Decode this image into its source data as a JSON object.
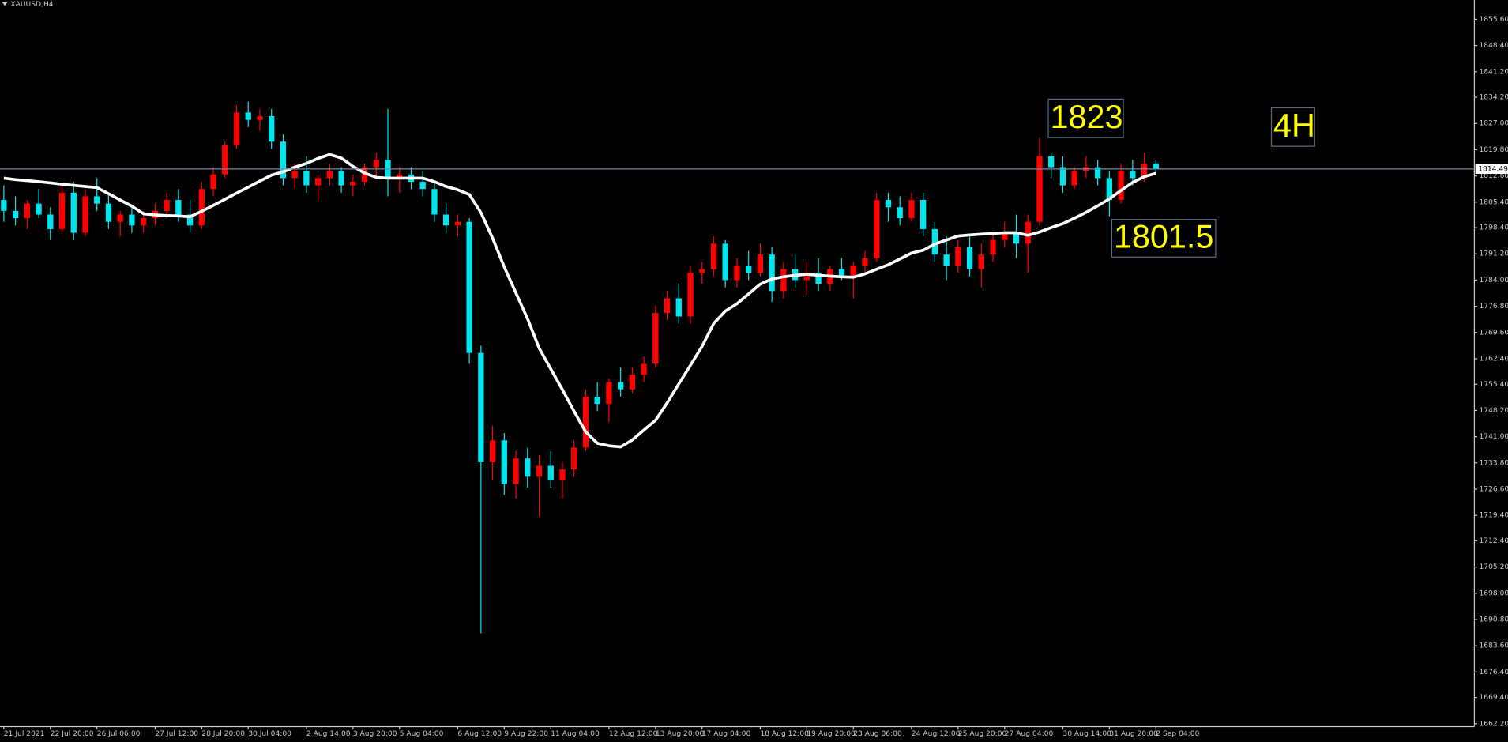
{
  "chart_data": {
    "type": "candlestick",
    "title": "XAUUSD,H4",
    "up_color": "#ff0000",
    "down_color": "#00e5ee",
    "ma_color": "#ffffff",
    "ylim": [
      1661.4,
      1860.9
    ],
    "yticks": [
      {
        "value": 1662.2,
        "label": "1662.20"
      },
      {
        "value": 1669.4,
        "label": "1669.40"
      },
      {
        "value": 1676.4,
        "label": "1676.40"
      },
      {
        "value": 1683.6,
        "label": "1683.60"
      },
      {
        "value": 1690.8,
        "label": "1690.80"
      },
      {
        "value": 1698,
        "label": "1698.00"
      },
      {
        "value": 1705.2,
        "label": "1705.20"
      },
      {
        "value": 1712.4,
        "label": "1712.40"
      },
      {
        "value": 1719.4,
        "label": "1719.40"
      },
      {
        "value": 1726.6,
        "label": "1726.60"
      },
      {
        "value": 1733.8,
        "label": "1733.80"
      },
      {
        "value": 1741,
        "label": "1741.00"
      },
      {
        "value": 1748.2,
        "label": "1748.20"
      },
      {
        "value": 1755.4,
        "label": "1755.40"
      },
      {
        "value": 1762.4,
        "label": "1762.40"
      },
      {
        "value": 1769.6,
        "label": "1769.60"
      },
      {
        "value": 1776.8,
        "label": "1776.80"
      },
      {
        "value": 1784,
        "label": "1784.00"
      },
      {
        "value": 1791.2,
        "label": "1791.20"
      },
      {
        "value": 1798.4,
        "label": "1798.40"
      },
      {
        "value": 1805.4,
        "label": "1805.40"
      },
      {
        "value": 1812.6,
        "label": "1812.60"
      },
      {
        "value": 1819.8,
        "label": "1819.80"
      },
      {
        "value": 1827,
        "label": "1827.00"
      },
      {
        "value": 1834.2,
        "label": "1834.20"
      },
      {
        "value": 1841.2,
        "label": "1841.20"
      },
      {
        "value": 1848.4,
        "label": "1848.40"
      },
      {
        "value": 1855.6,
        "label": "1855.60"
      }
    ],
    "categories": [
      "21 Jul 2021",
      null,
      null,
      null,
      "22 Jul 20:00",
      null,
      null,
      null,
      "26 Jul 06:00",
      null,
      null,
      null,
      null,
      "27 Jul 12:00",
      null,
      null,
      null,
      "28 Jul 20:00",
      null,
      null,
      null,
      "30 Jul 04:00",
      null,
      null,
      null,
      null,
      "2 Aug 14:00",
      null,
      null,
      null,
      "3 Aug 20:00",
      null,
      null,
      null,
      "5 Aug 04:00",
      null,
      null,
      null,
      null,
      "6 Aug 12:00",
      null,
      null,
      null,
      "9 Aug 22:00",
      null,
      null,
      null,
      "11 Aug 04:00",
      null,
      null,
      null,
      null,
      "12 Aug 12:00",
      null,
      null,
      null,
      "13 Aug 20:00",
      null,
      null,
      null,
      "17 Aug 04:00",
      null,
      null,
      null,
      null,
      "18 Aug 12:00",
      null,
      null,
      null,
      "19 Aug 20:00",
      null,
      null,
      null,
      "23 Aug 06:00",
      null,
      null,
      null,
      null,
      "24 Aug 12:00",
      null,
      null,
      null,
      "25 Aug 20:00",
      null,
      null,
      null,
      "27 Aug 04:00",
      null,
      null,
      null,
      null,
      "30 Aug 14:00",
      null,
      null,
      null,
      "31 Aug 20:00",
      null,
      null,
      null,
      "2 Sep 04:00"
    ],
    "open": [
      1806,
      1803,
      1801,
      1805,
      1802,
      1798,
      1808,
      1797,
      1807,
      1805,
      1800,
      1802,
      1799,
      1801,
      1803,
      1806,
      1802,
      1799,
      1809,
      1813,
      1821,
      1830,
      1828,
      1829,
      1822,
      1812,
      1814,
      1810,
      1812,
      1814,
      1810,
      1811,
      1815,
      1817,
      1812,
      1813,
      1811,
      1809,
      1802,
      1799,
      1800,
      1764,
      1734,
      1740,
      1728,
      1735,
      1730,
      1733,
      1729,
      1732,
      1738,
      1752,
      1750,
      1756,
      1754,
      1758,
      1761,
      1775,
      1779,
      1774,
      1786,
      1787,
      1794,
      1784,
      1788,
      1786,
      1791,
      1781,
      1787,
      1784,
      1786,
      1783,
      1787,
      1785,
      1788,
      1790,
      1806,
      1804,
      1801,
      1806,
      1798,
      1791,
      1788,
      1793,
      1787,
      1791,
      1795,
      1797,
      1794,
      1800,
      1818,
      1815,
      1810,
      1814,
      1815,
      1812,
      1806,
      1814,
      1812,
      1816
    ],
    "high": [
      1810,
      1807,
      1806,
      1809,
      1804,
      1810,
      1811,
      1809,
      1812,
      1808,
      1803,
      1804,
      1803,
      1805,
      1808,
      1809,
      1806,
      1811,
      1815,
      1822,
      1832,
      1833,
      1831,
      1831,
      1824,
      1816,
      1818,
      1813,
      1816,
      1815,
      1813,
      1816,
      1819,
      1831,
      1815,
      1815,
      1814,
      1811,
      1805,
      1802,
      1801,
      1766,
      1744,
      1742,
      1737,
      1738,
      1736,
      1737,
      1734,
      1740,
      1754,
      1756,
      1757,
      1760,
      1760,
      1763,
      1777,
      1781,
      1783,
      1788,
      1789,
      1796,
      1795,
      1790,
      1792,
      1794,
      1793,
      1789,
      1791,
      1789,
      1790,
      1788,
      1790,
      1789,
      1792,
      1808,
      1808,
      1807,
      1808,
      1808,
      1800,
      1796,
      1795,
      1796,
      1794,
      1797,
      1800,
      1802,
      1802,
      1823,
      1819,
      1818,
      1815,
      1818,
      1817,
      1814,
      1816,
      1817,
      1819,
      1817
    ],
    "low": [
      1800,
      1799,
      1798,
      1801,
      1795,
      1797,
      1795,
      1796,
      1803,
      1798,
      1796,
      1797,
      1797,
      1799,
      1801,
      1800,
      1797,
      1798,
      1807,
      1812,
      1820,
      1826,
      1825,
      1820,
      1810,
      1809,
      1808,
      1806,
      1810,
      1808,
      1807,
      1810,
      1812,
      1807,
      1808,
      1809,
      1807,
      1800,
      1797,
      1796,
      1761,
      1687,
      1729,
      1725,
      1724,
      1727,
      1719,
      1727,
      1724,
      1730,
      1737,
      1748,
      1745,
      1752,
      1753,
      1756,
      1760,
      1773,
      1772,
      1772,
      1783,
      1785,
      1782,
      1782,
      1784,
      1785,
      1778,
      1779,
      1782,
      1780,
      1781,
      1781,
      1784,
      1779,
      1786,
      1789,
      1800,
      1799,
      1800,
      1796,
      1789,
      1784,
      1786,
      1785,
      1782,
      1789,
      1793,
      1790,
      1786,
      1799,
      1812,
      1808,
      1809,
      1812,
      1810,
      1801.5,
      1805,
      1810,
      1811,
      1813
    ],
    "close": [
      1803,
      1801,
      1805,
      1802,
      1798,
      1808,
      1797,
      1807,
      1805,
      1800,
      1802,
      1799,
      1801,
      1803,
      1806,
      1802,
      1799,
      1809,
      1813,
      1821,
      1830,
      1828,
      1829,
      1822,
      1812,
      1814,
      1810,
      1812,
      1814,
      1810,
      1811,
      1815,
      1817,
      1812,
      1813,
      1811,
      1809,
      1802,
      1799,
      1800,
      1764,
      1734,
      1740,
      1728,
      1735,
      1730,
      1733,
      1729,
      1732,
      1738,
      1752,
      1750,
      1756,
      1754,
      1758,
      1761,
      1775,
      1779,
      1774,
      1786,
      1787,
      1794,
      1784,
      1788,
      1786,
      1791,
      1781,
      1787,
      1784,
      1786,
      1783,
      1787,
      1785,
      1788,
      1790,
      1806,
      1804,
      1801,
      1806,
      1798,
      1791,
      1788,
      1793,
      1787,
      1791,
      1795,
      1797,
      1794,
      1800,
      1818,
      1815,
      1810,
      1814,
      1815,
      1812,
      1806,
      1814,
      1812,
      1816,
      1814.49
    ],
    "ma": [
      1812,
      1811.6,
      1811.3,
      1811,
      1810.7,
      1810.3,
      1810,
      1809.7,
      1809.4,
      1807.7,
      1806,
      1804.3,
      1802.2,
      1801.9,
      1801.7,
      1801.6,
      1801.4,
      1802.9,
      1804.5,
      1806.2,
      1807.9,
      1809.5,
      1811.2,
      1812.8,
      1813.7,
      1815,
      1816,
      1817.4,
      1818.5,
      1817.5,
      1815.2,
      1813.4,
      1812.2,
      1812,
      1812,
      1812,
      1812,
      1811,
      1809.7,
      1808.8,
      1807.5,
      1802.5,
      1795.5,
      1787.6,
      1780.5,
      1773.4,
      1765.3,
      1759.6,
      1753.9,
      1748,
      1742.3,
      1739.2,
      1738.5,
      1738.2,
      1740.1,
      1742.8,
      1745.5,
      1750.3,
      1755.5,
      1760.6,
      1765.8,
      1772.1,
      1775.5,
      1777.5,
      1780.2,
      1782.9,
      1784.3,
      1784.9,
      1785.3,
      1785.6,
      1785.3,
      1785.1,
      1784.9,
      1784.8,
      1785.7,
      1787,
      1788.2,
      1789.8,
      1791.4,
      1792.2,
      1793.9,
      1795,
      1796.1,
      1796.4,
      1796.6,
      1796.8,
      1797,
      1797,
      1796.3,
      1797.2,
      1798.4,
      1799.5,
      1801,
      1802.6,
      1804.4,
      1806.3,
      1808.6,
      1810.8,
      1812.4,
      1813.3
    ],
    "current_price": 1814.49,
    "annotations": [
      "1823",
      "1801.5",
      "4H"
    ]
  }
}
